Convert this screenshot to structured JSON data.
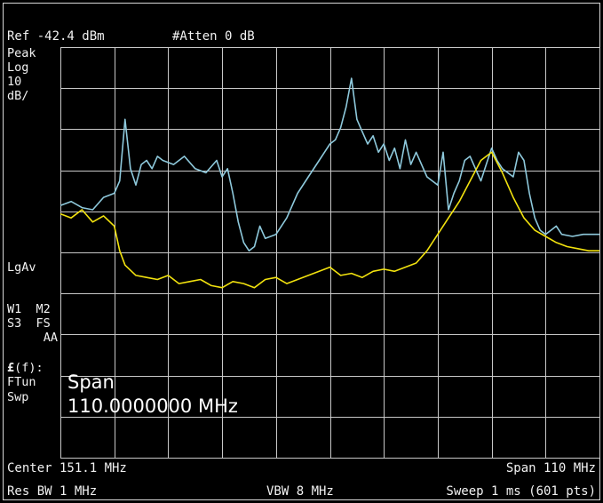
{
  "header": {
    "ref_level": "Ref -42.4 dBm",
    "attenuation": "#Atten 0 dB"
  },
  "side_labels": {
    "detector": "Peak",
    "scale_type": "Log",
    "scale_value": "10",
    "scale_unit": "dB/",
    "averaging": "LgAv",
    "trace_row1": "W1  M2",
    "trace_row2": "S3  FS",
    "trace_row3": "AA",
    "ef_label": "(f):",
    "ef_symbol": "£",
    "ftun": "FTun",
    "swp": "Swp"
  },
  "active_function": {
    "title": "Span",
    "value": "110.0000000 MHz"
  },
  "footer": {
    "center": "Center 151.1 MHz",
    "span": "Span 110 MHz",
    "res_bw": "Res BW 1 MHz",
    "vbw": "VBW 8 MHz",
    "sweep": "Sweep 1 ms (601 pts)"
  },
  "colors": {
    "background": "#000000",
    "grid": "#c8c8c8",
    "trace1": "#8ec9dc",
    "trace2": "#f2e20e",
    "text": "#f2f2f2"
  },
  "chart_data": {
    "type": "line",
    "grid": true,
    "x_divisions": 10,
    "y_divisions": 10,
    "xlim": [
      96.1,
      206.1
    ],
    "ylim": [
      -142.4,
      -42.4
    ],
    "x_unit": "MHz",
    "y_unit": "dBm",
    "series": [
      {
        "color": "#8ec9dc",
        "x": [
          96.1,
          98.3,
          100.5,
          102.7,
          104.9,
          107.1,
          108.2,
          109.3,
          110.4,
          111.5,
          112.6,
          113.7,
          114.8,
          115.9,
          117.0,
          119.2,
          121.4,
          123.6,
          125.8,
          128.0,
          129.1,
          130.2,
          131.3,
          132.4,
          133.5,
          134.6,
          135.7,
          136.8,
          137.9,
          140.1,
          142.3,
          144.5,
          146.7,
          148.9,
          150.0,
          151.1,
          152.2,
          153.3,
          154.4,
          155.5,
          156.6,
          157.7,
          158.8,
          159.9,
          161.0,
          162.1,
          163.2,
          164.3,
          165.4,
          166.5,
          167.6,
          168.7,
          170.9,
          173.1,
          174.2,
          175.3,
          176.4,
          177.5,
          178.6,
          179.7,
          180.8,
          181.9,
          183.0,
          184.1,
          185.2,
          186.3,
          187.4,
          188.5,
          189.6,
          190.7,
          191.8,
          192.9,
          194.0,
          195.1,
          196.2,
          197.3,
          198.4,
          200.6,
          202.8,
          206.1
        ],
        "y": [
          -81.0,
          -80.0,
          -81.5,
          -82.0,
          -79.0,
          -78.0,
          -75.0,
          -60.0,
          -72.0,
          -76.0,
          -71.0,
          -70.0,
          -72.0,
          -69.0,
          -70.0,
          -71.0,
          -69.0,
          -72.0,
          -73.0,
          -70.0,
          -74.0,
          -72.0,
          -78.0,
          -85.0,
          -90.0,
          -92.0,
          -91.0,
          -86.0,
          -89.0,
          -88.0,
          -84.0,
          -78.0,
          -74.0,
          -70.0,
          -68.0,
          -66.0,
          -65.0,
          -62.0,
          -57.0,
          -50.0,
          -60.0,
          -63.0,
          -66.0,
          -64.0,
          -68.0,
          -66.0,
          -70.0,
          -67.0,
          -72.0,
          -65.0,
          -71.0,
          -68.0,
          -74.0,
          -76.0,
          -68.0,
          -82.0,
          -78.0,
          -75.0,
          -70.0,
          -69.0,
          -72.0,
          -75.0,
          -71.0,
          -67.0,
          -70.0,
          -72.0,
          -73.0,
          -74.0,
          -68.0,
          -70.0,
          -78.0,
          -84.0,
          -87.0,
          -88.0,
          -87.0,
          -86.0,
          -88.0,
          -88.5,
          -88.0,
          -88.0
        ]
      },
      {
        "color": "#f2e20e",
        "x": [
          96.1,
          98.3,
          100.5,
          102.7,
          104.9,
          107.1,
          108.2,
          109.3,
          111.5,
          113.7,
          115.9,
          118.1,
          120.3,
          122.5,
          124.7,
          126.9,
          129.1,
          131.3,
          133.5,
          135.7,
          137.9,
          140.1,
          142.3,
          144.5,
          146.7,
          148.9,
          151.1,
          153.3,
          155.5,
          157.7,
          159.9,
          162.1,
          164.3,
          166.5,
          168.7,
          170.9,
          173.1,
          175.3,
          177.5,
          179.7,
          181.9,
          184.1,
          186.3,
          188.5,
          190.7,
          192.9,
          195.1,
          197.3,
          199.5,
          201.7,
          203.9,
          206.1
        ],
        "y": [
          -83.0,
          -84.0,
          -82.0,
          -85.0,
          -83.5,
          -86.0,
          -92.0,
          -95.5,
          -98.0,
          -98.5,
          -99.0,
          -98.0,
          -100.0,
          -99.5,
          -99.0,
          -100.5,
          -101.0,
          -99.5,
          -100.0,
          -101.0,
          -99.0,
          -98.5,
          -100.0,
          -99.0,
          -98.0,
          -97.0,
          -96.0,
          -98.0,
          -97.5,
          -98.5,
          -97.0,
          -96.5,
          -97.0,
          -96.0,
          -95.0,
          -92.0,
          -88.0,
          -84.0,
          -80.0,
          -75.0,
          -70.0,
          -68.0,
          -73.0,
          -79.0,
          -84.0,
          -87.0,
          -88.5,
          -90.0,
          -91.0,
          -91.5,
          -92.0,
          -92.0
        ]
      }
    ]
  }
}
